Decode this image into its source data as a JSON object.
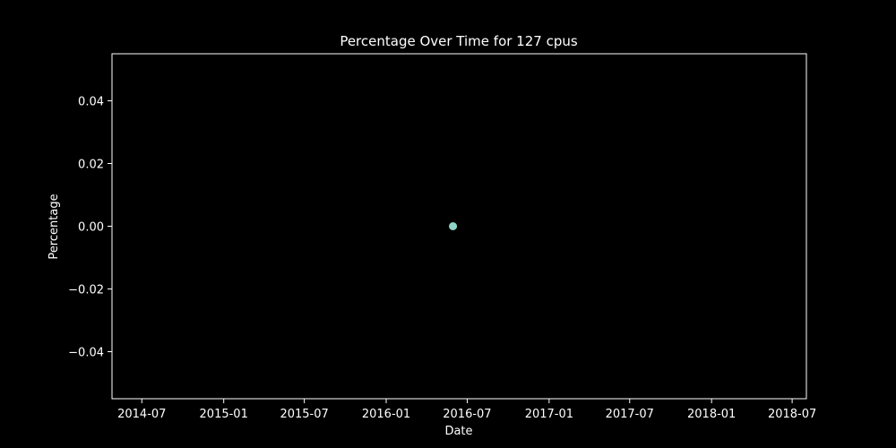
{
  "chart_data": {
    "type": "scatter",
    "title": "Percentage Over Time for 127 cpus",
    "xlabel": "Date",
    "ylabel": "Percentage",
    "x_axis_type": "date",
    "xlim": [
      "2014-04-25",
      "2018-08-02"
    ],
    "ylim": [
      -0.055,
      0.055
    ],
    "x_ticks": [
      "2014-07",
      "2015-01",
      "2015-07",
      "2016-01",
      "2016-07",
      "2017-01",
      "2017-07",
      "2018-01",
      "2018-07"
    ],
    "y_ticks": [
      0.04,
      0.02,
      0.0,
      -0.02,
      -0.04
    ],
    "y_tick_labels": [
      "0.04",
      "0.02",
      "0.00",
      "−0.02",
      "−0.04"
    ],
    "grid": false,
    "background_color": "#000000",
    "foreground_color": "#ffffff",
    "series": [
      {
        "color": "#8dd3c7",
        "points": [
          {
            "x": "2016-05-30",
            "y": 0.0
          }
        ]
      }
    ]
  }
}
